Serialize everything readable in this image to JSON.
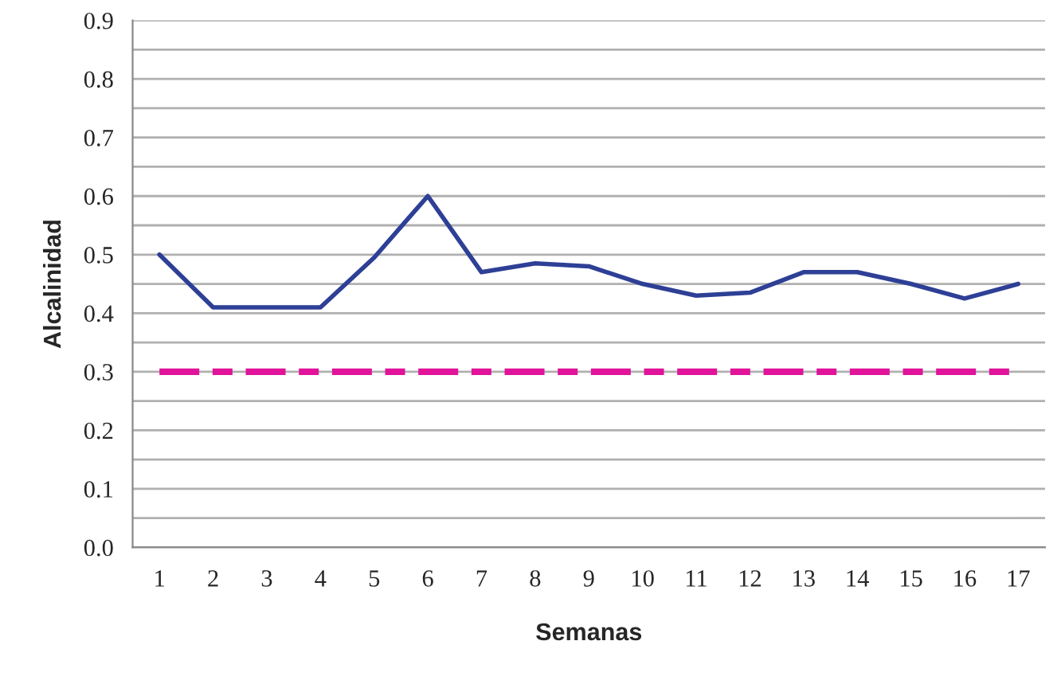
{
  "chart_data": {
    "type": "line",
    "xlabel": "Semanas",
    "ylabel": "Alcalinidad",
    "categories": [
      "1",
      "2",
      "3",
      "4",
      "5",
      "6",
      "7",
      "8",
      "9",
      "10",
      "11",
      "12",
      "13",
      "14",
      "15",
      "16",
      "17"
    ],
    "series": [
      {
        "color": "#2e3f96",
        "values": [
          0.5,
          0.41,
          0.41,
          0.41,
          0.495,
          0.6,
          0.47,
          0.485,
          0.48,
          0.45,
          0.43,
          0.435,
          0.47,
          0.47,
          0.45,
          0.425,
          0.45
        ]
      }
    ],
    "ylim": [
      0,
      0.9
    ],
    "yticks": [
      {
        "value": 0,
        "label": "0.0"
      },
      {
        "value": 0.05,
        "label": null
      },
      {
        "value": 0.1,
        "label": "0.1"
      },
      {
        "value": 0.15,
        "label": null
      },
      {
        "value": 0.2,
        "label": "0.2"
      },
      {
        "value": 0.25,
        "label": null
      },
      {
        "value": 0.3,
        "label": "0.3"
      },
      {
        "value": 0.35,
        "label": null
      },
      {
        "value": 0.4,
        "label": "0.4"
      },
      {
        "value": 0.45,
        "label": null
      },
      {
        "value": 0.5,
        "label": "0.5"
      },
      {
        "value": 0.55,
        "label": null
      },
      {
        "value": 0.6,
        "label": "0.6"
      },
      {
        "value": 0.65,
        "label": null
      },
      {
        "value": 0.7,
        "label": "0.7"
      },
      {
        "value": 0.75,
        "label": null
      },
      {
        "value": 0.8,
        "label": "0.8"
      },
      {
        "value": 0.85,
        "label": null
      },
      {
        "value": 0.9,
        "label": "0.9"
      }
    ],
    "ref_lines": [
      {
        "axis": "y",
        "value": 0.3,
        "color": "#e0139a",
        "line_style": "dashed"
      }
    ],
    "grid": "y",
    "line_style": "solid",
    "marker": "none"
  }
}
